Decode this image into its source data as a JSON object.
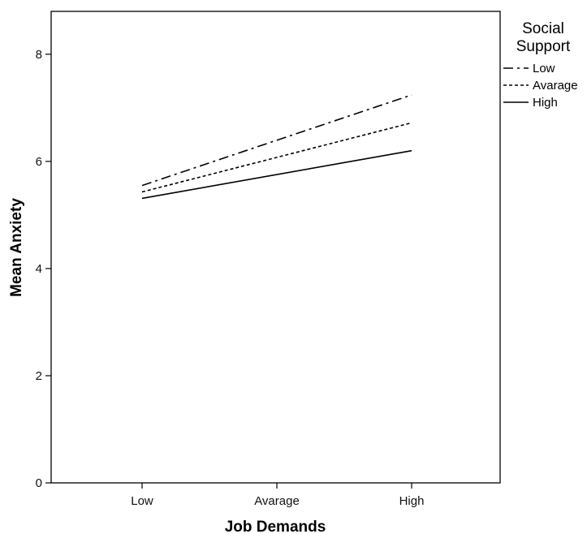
{
  "chart_data": {
    "type": "line",
    "xlabel": "Job Demands",
    "ylabel": "Mean Anxiety",
    "categories": [
      "Low",
      "Avarage",
      "High"
    ],
    "ylim": [
      0,
      8.8
    ],
    "yticks": [
      0,
      2,
      4,
      6,
      8
    ],
    "grid": false,
    "legend": {
      "title_lines": [
        "Social",
        "Support"
      ],
      "position": "right-top-outside"
    },
    "series": [
      {
        "name": "Low",
        "values": [
          5.55,
          null,
          7.24
        ],
        "dash": "12,5,3,5"
      },
      {
        "name": "Avarage",
        "values": [
          5.43,
          null,
          6.72
        ],
        "dash": "4,3"
      },
      {
        "name": "High",
        "values": [
          5.31,
          null,
          6.2
        ],
        "dash": ""
      }
    ]
  }
}
